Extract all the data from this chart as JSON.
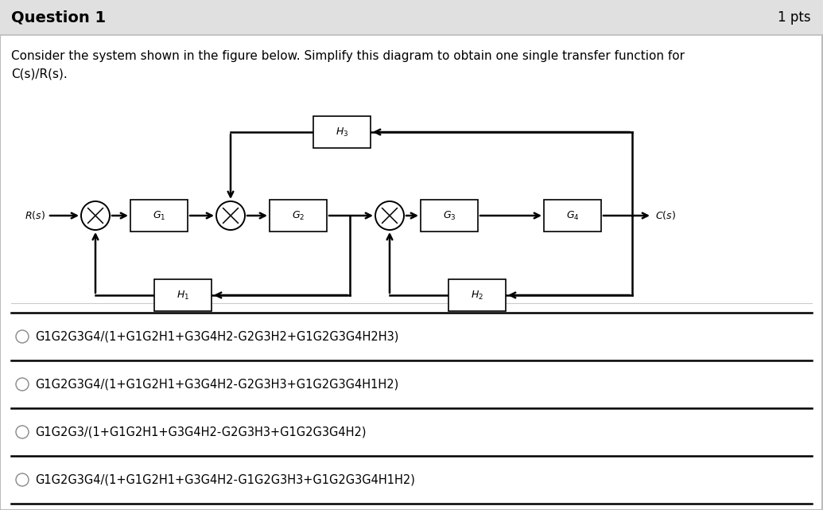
{
  "title": "Question 1",
  "pts": "1 pts",
  "question_text_line1": "Consider the system shown in the figure below. Simplify this diagram to obtain one single transfer function for",
  "question_text_line2": "C(s)/R(s).",
  "bg_color": "#f0f0f0",
  "header_bg": "#e0e0e0",
  "content_bg": "#ffffff",
  "white": "#ffffff",
  "black": "#000000",
  "gray_line": "#cccccc",
  "options": [
    "G1G2G3G4/(1+G1G2H1+G3G4H2-G2G3H2+G1G2G3G4H2H3)",
    "G1G2G3G4/(1+G1G2H1+G3G4H2-G2G3H3+G1G2G3G4H1H2)",
    "G1G2G3/(1+G1G2H1+G3G4H2-G2G3H3+G1G2G3G4H2)",
    "G1G2G3G4/(1+G1G2H1+G3G4H2-G1G2G3H3+G1G2G3G4H1H2)"
  ]
}
